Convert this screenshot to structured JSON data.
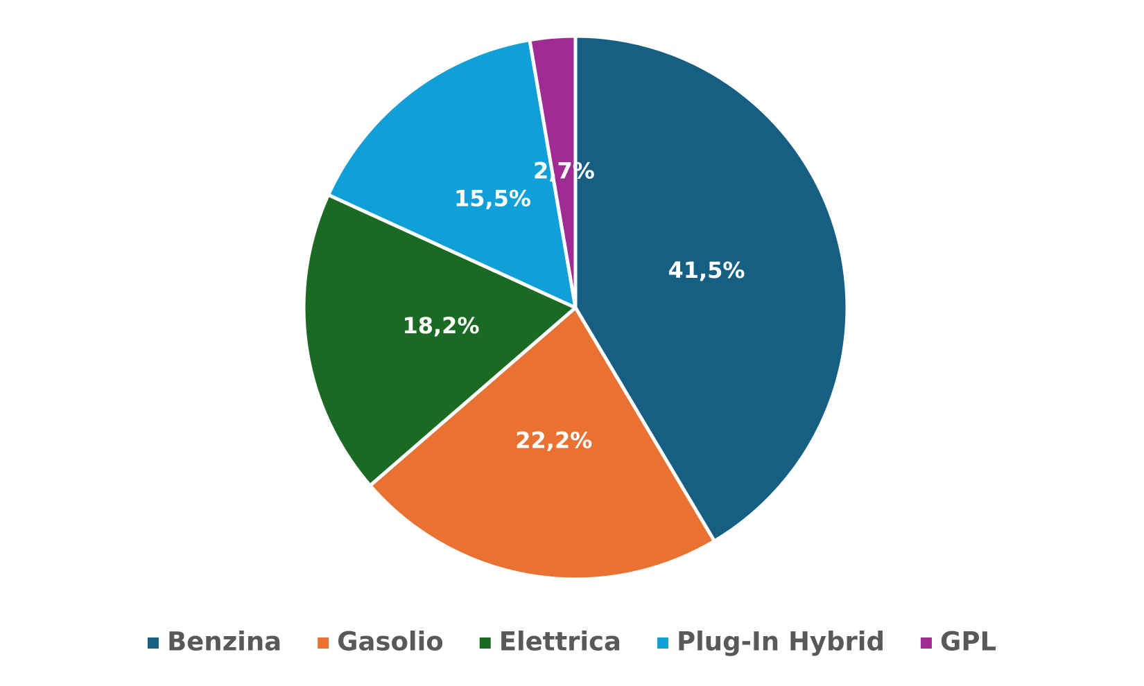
{
  "chart_data": {
    "type": "pie",
    "categories": [
      "Benzina",
      "Gasolio",
      "Elettrica",
      "Plug-In Hybrid",
      "GPL"
    ],
    "values": [
      41.5,
      22.2,
      18.2,
      15.5,
      2.7
    ],
    "value_labels": [
      "41,5%",
      "22,2%",
      "18,2%",
      "15,5%",
      "2,7%"
    ],
    "colors": [
      "#175f82",
      "#e97132",
      "#1b6a23",
      "#119fd7",
      "#a02b93"
    ],
    "legend": "bottom"
  }
}
